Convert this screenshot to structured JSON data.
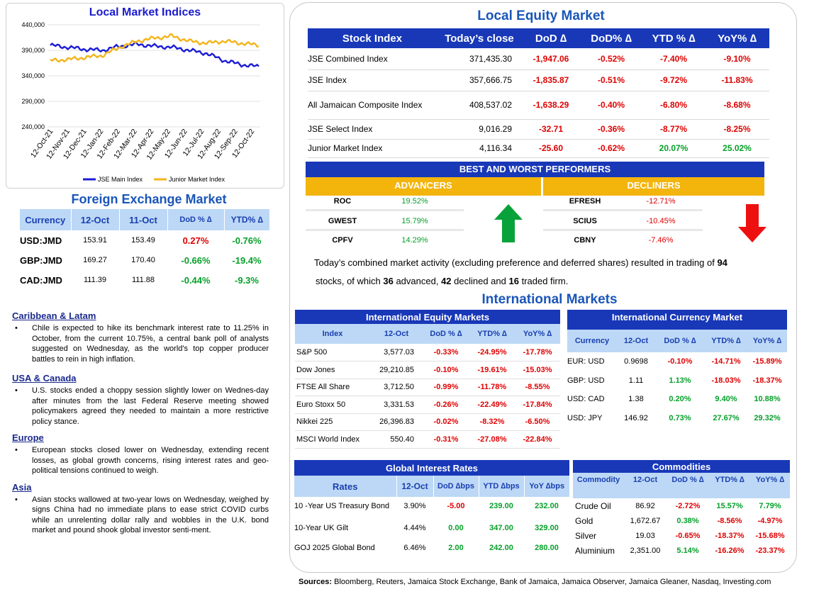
{
  "local_indices_chart": {
    "title": "Local Market Indices",
    "chart_data": {
      "type": "line",
      "title": "Local Market Indices",
      "ylim": [
        240000,
        440000
      ],
      "y_ticks": [
        "440,000",
        "390,000",
        "340,000",
        "290,000",
        "240,000"
      ],
      "x_ticks": [
        "12-Oct-21",
        "12-Nov-21",
        "12-Dec-21",
        "12-Jan-22",
        "12-Feb-22",
        "12-Mar-22",
        "12-Apr-22",
        "12-May-22",
        "12-Jun-22",
        "12-Jul-22",
        "12-Aug-22",
        "12-Sep-22",
        "12-Oct-22"
      ],
      "series": [
        {
          "name": "JSE Main Index",
          "color": "#1c1cd6",
          "values": [
            400000,
            396000,
            392000,
            390000,
            398000,
            402000,
            398000,
            396000,
            390000,
            384000,
            370000,
            362000,
            358000
          ]
        },
        {
          "name": "Junior Market Index",
          "color": "#f2b51c",
          "values": [
            370000,
            372000,
            376000,
            380000,
            396000,
            408000,
            414000,
            418000,
            408000,
            404000,
            408000,
            404000,
            400000
          ]
        }
      ],
      "legend": "bottom",
      "grid": true
    }
  },
  "local_equity": {
    "title": "Local Equity Market",
    "headers": [
      "Stock Index",
      "Today’s close",
      "DoD  ∆",
      "DoD% ∆",
      "YTD % ∆",
      "YoY% ∆"
    ],
    "rows": [
      {
        "name": "JSE Combined Index",
        "close": "371,435.30",
        "dod": "-1,947.06",
        "dodp": "-0.52%",
        "ytd": "-7.40%",
        "yoy": "-9.10%"
      },
      {
        "name": "JSE Index",
        "close": "357,666.75",
        "dod": "-1,835.87",
        "dodp": "-0.51%",
        "ytd": "-9.72%",
        "yoy": "-11.83%"
      },
      {
        "name": "All Jamaican Composite Index",
        "close": "408,537.02",
        "dod": "-1,638.29",
        "dodp": "-0.40%",
        "ytd": "-6.80%",
        "yoy": "-8.68%"
      },
      {
        "name": "JSE Select Index",
        "close": "9,016.29",
        "dod": "-32.71",
        "dodp": "-0.36%",
        "ytd": "-8.77%",
        "yoy": "-8.25%"
      },
      {
        "name": "Junior Market Index",
        "close": "4,116.34",
        "dod": "-25.60",
        "dodp": "-0.62%",
        "ytd": "20.07%",
        "yoy": "25.02%"
      }
    ]
  },
  "performers": {
    "title": "BEST AND WORST PERFORMERS",
    "adv_label": "ADVANCERS",
    "dec_label": "DECLINERS",
    "advancers": [
      {
        "sym": "ROC",
        "pct": "19.52%"
      },
      {
        "sym": "GWEST",
        "pct": "15.79%"
      },
      {
        "sym": "CPFV",
        "pct": "14.29%"
      }
    ],
    "decliners": [
      {
        "sym": "EFRESH",
        "pct": "-12.71%"
      },
      {
        "sym": "SCIUS",
        "pct": "-10.45%"
      },
      {
        "sym": "CBNY",
        "pct": "-7.46%"
      }
    ],
    "summary": {
      "p1": "Today’s combined market activity (excluding preference and deferred shares) resulted in trading of ",
      "n1": "94",
      "p2": "stocks, of which ",
      "n2": "36",
      "p3": " advanced, ",
      "n3": "42",
      "p4": " declined and ",
      "n4": "16",
      "p5": " traded firm."
    }
  },
  "fx": {
    "title": "Foreign Exchange Market",
    "headers": [
      "Currency",
      "12-Oct",
      "11-Oct",
      "DoD % ∆",
      "YTD% ∆"
    ],
    "rows": [
      {
        "cur": "USD:JMD",
        "a": "153.91",
        "b": "153.49",
        "dod": "0.27%",
        "dod_sign": "neg",
        "ytd": "-0.76%"
      },
      {
        "cur": "GBP:JMD",
        "a": "169.27",
        "b": "170.40",
        "dod": "-0.66%",
        "dod_sign": "pos",
        "ytd": "-19.4%"
      },
      {
        "cur": "CAD:JMD",
        "a": "111.39",
        "b": "111.88",
        "dod": "-0.44%",
        "dod_sign": "pos",
        "ytd": "-9.3%"
      }
    ]
  },
  "news": [
    {
      "heading": "Caribbean & Latam",
      "text": "Chile is expected to hike its benchmark interest rate to 11.25% in October, from the current 10.75%, a central bank poll of analysts suggested on Wednesday, as the world's top copper producer battles to rein in high inflation."
    },
    {
      "heading": "USA & Canada",
      "text": "U.S. stocks ended a choppy session slightly lower on Wednes-day after minutes from the last Federal Reserve meeting showed policymakers agreed they needed to maintain a more restrictive policy stance."
    },
    {
      "heading": "Europe",
      "text": "European stocks closed lower on Wednesday, extending recent losses, as global growth concerns, rising interest rates and geo-political tensions continued to weigh."
    },
    {
      "heading": "Asia",
      "text": "Asian stocks wallowed at two-year lows on Wednesday, weighed by signs China had no immediate plans to ease strict COVID curbs while an unrelenting dollar rally and wobbles in the U.K. bond market and pound shook global investor senti-ment."
    }
  ],
  "intl": {
    "title": "International Markets",
    "equity": {
      "title": "International Equity Markets",
      "headers": [
        "Index",
        "12-Oct",
        "DoD % ∆",
        "YTD% ∆",
        "YoY% ∆"
      ],
      "rows": [
        {
          "name": "S&P 500",
          "val": "3,577.03",
          "dod": "-0.33%",
          "ytd": "-24.95%",
          "yoy": "-17.78%"
        },
        {
          "name": "Dow Jones",
          "val": "29,210.85",
          "dod": "-0.10%",
          "ytd": "-19.61%",
          "yoy": "-15.03%"
        },
        {
          "name": "FTSE All Share",
          "val": "3,712.50",
          "dod": "-0.99%",
          "ytd": "-11.78%",
          "yoy": "-8.55%"
        },
        {
          "name": "Euro Stoxx 50",
          "val": "3,331.53",
          "dod": "-0.26%",
          "ytd": "-22.49%",
          "yoy": "-17.84%"
        },
        {
          "name": "Nikkei 225",
          "val": "26,396.83",
          "dod": "-0.02%",
          "ytd": "-8.32%",
          "yoy": "-6.50%"
        },
        {
          "name": "MSCI World Index",
          "val": "550.40",
          "dod": "-0.31%",
          "ytd": "-27.08%",
          "yoy": "-22.84%"
        }
      ]
    },
    "currency": {
      "title": "International Currency Market",
      "headers": [
        "Currency",
        "12-Oct",
        "DoD % ∆",
        "YTD% ∆",
        "YoY% ∆"
      ],
      "rows": [
        {
          "name": "EUR: USD",
          "val": "0.9698",
          "dod": "-0.10%",
          "dod_s": "neg",
          "ytd": "-14.71%",
          "ytd_s": "neg",
          "yoy": "-15.89%",
          "yoy_s": "neg"
        },
        {
          "name": "GBP: USD",
          "val": "1.11",
          "dod": "1.13%",
          "dod_s": "pos",
          "ytd": "-18.03%",
          "ytd_s": "neg",
          "yoy": "-18.37%",
          "yoy_s": "neg"
        },
        {
          "name": "USD: CAD",
          "val": "1.38",
          "dod": "0.20%",
          "dod_s": "pos",
          "ytd": "9.40%",
          "ytd_s": "pos",
          "yoy": "10.88%",
          "yoy_s": "pos"
        },
        {
          "name": "USD: JPY",
          "val": "146.92",
          "dod": "0.73%",
          "dod_s": "pos",
          "ytd": "27.67%",
          "ytd_s": "pos",
          "yoy": "29.32%",
          "yoy_s": "pos"
        }
      ]
    },
    "rates": {
      "title": "Global Interest Rates",
      "headers": [
        "Rates",
        "12-Oct",
        "DoD ∆bps",
        "YTD ∆bps",
        "YoY ∆bps"
      ],
      "rows": [
        {
          "name": "10 -Year US Treasury Bond",
          "val": "3.90%",
          "dod": "-5.00",
          "dod_s": "neg",
          "ytd": "239.00",
          "yoy": "232.00"
        },
        {
          "name": "10-Year UK Gilt",
          "val": "4.44%",
          "dod": "0.00",
          "dod_s": "pos",
          "ytd": "347.00",
          "yoy": "329.00"
        },
        {
          "name": "GOJ 2025 Global Bond",
          "val": "6.46%",
          "dod": "2.00",
          "dod_s": "pos",
          "ytd": "242.00",
          "yoy": "280.00"
        }
      ]
    },
    "commodities": {
      "title": "Commodities",
      "headers": [
        "Commodity",
        "12-Oct",
        "DoD % ∆",
        "YTD% ∆",
        "YoY% ∆"
      ],
      "rows": [
        {
          "name": "Crude Oil",
          "val": "86.92",
          "dod": "-2.72%",
          "dod_s": "neg",
          "ytd": "15.57%",
          "ytd_s": "pos",
          "yoy": "7.79%",
          "yoy_s": "pos"
        },
        {
          "name": "Gold",
          "val": "1,672.67",
          "dod": "0.38%",
          "dod_s": "pos",
          "ytd": "-8.56%",
          "ytd_s": "neg",
          "yoy": "-4.97%",
          "yoy_s": "neg"
        },
        {
          "name": "Silver",
          "val": "19.03",
          "dod": "-0.65%",
          "dod_s": "neg",
          "ytd": "-18.37%",
          "ytd_s": "neg",
          "yoy": "-15.68%",
          "yoy_s": "neg"
        },
        {
          "name": "Aluminium",
          "val": "2,351.00",
          "dod": "5.14%",
          "dod_s": "pos",
          "ytd": "-16.26%",
          "ytd_s": "neg",
          "yoy": "-23.37%",
          "yoy_s": "neg"
        }
      ]
    }
  },
  "sources": {
    "label": "Sources:",
    "text": " Bloomberg, Reuters, Jamaica Stock Exchange, Bank of Jamaica, Jamaica Observer, Jamaica Gleaner, Nasdaq, Investing.com"
  }
}
